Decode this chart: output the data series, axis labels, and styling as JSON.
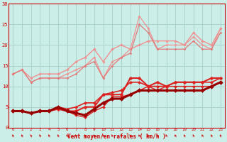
{
  "bg_color": "#cceee8",
  "grid_color": "#aad4ce",
  "x_label": "Vent moyen/en rafales ( km/h )",
  "x_ticks": [
    0,
    1,
    2,
    3,
    4,
    5,
    6,
    7,
    8,
    9,
    10,
    11,
    12,
    13,
    14,
    15,
    16,
    17,
    18,
    19,
    20,
    21,
    22,
    23
  ],
  "ylim": [
    0,
    30
  ],
  "xlim": [
    -0.5,
    23.5
  ],
  "yticks": [
    0,
    5,
    10,
    15,
    20,
    25,
    30
  ],
  "series": [
    {
      "x": [
        0,
        1,
        2,
        3,
        4,
        5,
        6,
        7,
        8,
        9,
        10,
        11,
        12,
        13,
        14,
        15,
        16,
        17,
        18,
        19,
        20,
        21,
        22,
        23
      ],
      "y": [
        13,
        14,
        12,
        13,
        13,
        13,
        14,
        16,
        17,
        19,
        16,
        19,
        20,
        19,
        20,
        21,
        21,
        21,
        21,
        20,
        23,
        21,
        20,
        24
      ],
      "color": "#f09090",
      "lw": 1.0,
      "marker": "D",
      "ms": 1.8
    },
    {
      "x": [
        0,
        1,
        2,
        3,
        4,
        5,
        6,
        7,
        8,
        9,
        10,
        11,
        12,
        13,
        14,
        15,
        16,
        17,
        18,
        19,
        20,
        21,
        22,
        23
      ],
      "y": [
        13,
        14,
        11,
        12,
        12,
        12,
        13,
        14,
        15,
        17,
        12,
        16,
        17,
        19,
        27,
        24,
        19,
        20,
        20,
        20,
        22,
        20,
        19,
        24
      ],
      "color": "#f09090",
      "lw": 0.9,
      "marker": "D",
      "ms": 1.6
    },
    {
      "x": [
        0,
        1,
        2,
        3,
        4,
        5,
        6,
        7,
        8,
        9,
        10,
        11,
        12,
        13,
        14,
        15,
        16,
        17,
        18,
        19,
        20,
        21,
        22,
        23
      ],
      "y": [
        13,
        14,
        11,
        12,
        12,
        12,
        12,
        13,
        15,
        16,
        12,
        15,
        17,
        18,
        25,
        23,
        19,
        19,
        19,
        19,
        21,
        19,
        19,
        23
      ],
      "color": "#e07878",
      "lw": 0.9,
      "marker": "D",
      "ms": 1.5
    },
    {
      "x": [
        0,
        1,
        2,
        3,
        4,
        5,
        6,
        7,
        8,
        9,
        10,
        11,
        12,
        13,
        14,
        15,
        16,
        17,
        18,
        19,
        20,
        21,
        22,
        23
      ],
      "y": [
        4,
        4,
        3.5,
        4,
        4,
        4.5,
        4,
        4,
        5,
        5,
        8,
        8,
        8,
        12,
        12,
        10,
        11,
        10,
        11,
        11,
        11,
        11,
        12,
        12
      ],
      "color": "#dd2222",
      "lw": 1.5,
      "marker": "D",
      "ms": 2.5
    },
    {
      "x": [
        0,
        1,
        2,
        3,
        4,
        5,
        6,
        7,
        8,
        9,
        10,
        11,
        12,
        13,
        14,
        15,
        16,
        17,
        18,
        19,
        20,
        21,
        22,
        23
      ],
      "y": [
        4,
        4,
        3.5,
        4,
        4,
        5,
        4.5,
        5,
        6,
        6,
        8,
        8.5,
        9,
        11,
        11,
        10,
        10,
        10,
        11,
        11,
        11,
        11,
        11,
        12
      ],
      "color": "#dd2222",
      "lw": 1.2,
      "marker": "D",
      "ms": 2.2
    },
    {
      "x": [
        0,
        1,
        2,
        3,
        4,
        5,
        6,
        7,
        8,
        9,
        10,
        11,
        12,
        13,
        14,
        15,
        16,
        17,
        18,
        19,
        20,
        21,
        22,
        23
      ],
      "y": [
        4,
        4,
        3.5,
        4,
        4,
        5,
        4,
        3,
        2.5,
        4,
        5,
        7.5,
        7.5,
        8,
        9,
        10,
        9,
        10,
        10,
        10,
        10,
        10,
        10,
        11
      ],
      "color": "#dd2222",
      "lw": 1.0,
      "marker": "D",
      "ms": 2.0
    },
    {
      "x": [
        0,
        1,
        2,
        3,
        4,
        5,
        6,
        7,
        8,
        9,
        10,
        11,
        12,
        13,
        14,
        15,
        16,
        17,
        18,
        19,
        20,
        21,
        22,
        23
      ],
      "y": [
        4,
        4,
        3.5,
        4,
        4,
        5,
        4,
        3.5,
        3,
        4.5,
        6,
        7,
        7,
        8,
        9,
        9,
        9,
        9,
        9,
        9,
        9,
        9,
        10,
        11
      ],
      "color": "#990000",
      "lw": 2.2,
      "marker": "D",
      "ms": 3.0
    }
  ],
  "arrow_color": "#cc0000"
}
